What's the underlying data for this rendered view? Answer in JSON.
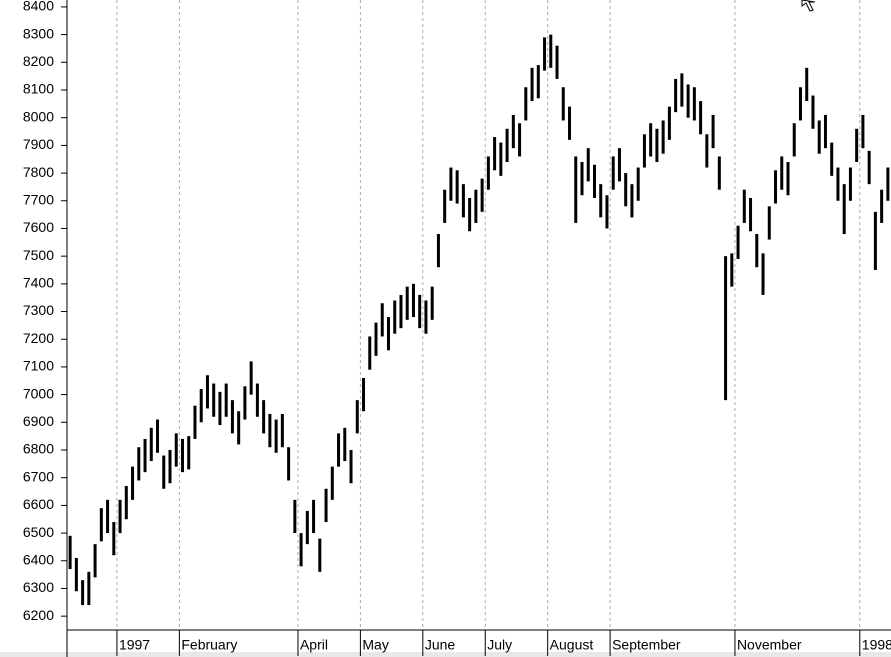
{
  "chart_data": {
    "type": "hilo",
    "color": "#000000",
    "categories": [
      null,
      null,
      null,
      null,
      null,
      null,
      null,
      null,
      "1997",
      null,
      null,
      null,
      null,
      null,
      null,
      null,
      null,
      null,
      "February",
      null,
      null,
      null,
      null,
      null,
      null,
      null,
      null,
      null,
      null,
      null,
      null,
      null,
      null,
      null,
      null,
      null,
      null,
      "April",
      null,
      null,
      null,
      null,
      null,
      null,
      null,
      null,
      null,
      "May",
      null,
      null,
      null,
      null,
      null,
      null,
      null,
      null,
      null,
      "June",
      null,
      null,
      null,
      null,
      null,
      null,
      null,
      null,
      null,
      "July",
      null,
      null,
      null,
      null,
      null,
      null,
      null,
      null,
      null,
      "August",
      null,
      null,
      null,
      null,
      null,
      null,
      null,
      null,
      null,
      "September",
      null,
      null,
      null,
      null,
      null,
      null,
      null,
      null,
      null,
      null,
      null,
      null,
      null,
      null,
      null,
      null,
      null,
      null,
      null,
      "November",
      null,
      null,
      null,
      null,
      null,
      null,
      null,
      null,
      null,
      null,
      null,
      null,
      null,
      null,
      null,
      null,
      null,
      null,
      null,
      "1998",
      null,
      null,
      null,
      null
    ],
    "high": [
      6490,
      6410,
      6330,
      6360,
      6460,
      6590,
      6620,
      6540,
      6620,
      6670,
      6740,
      6810,
      6840,
      6880,
      6910,
      6780,
      6800,
      6860,
      6840,
      6850,
      6960,
      7020,
      7070,
      7040,
      7010,
      7040,
      6980,
      6940,
      7030,
      7120,
      7040,
      6980,
      6930,
      6910,
      6930,
      6810,
      6620,
      6500,
      6580,
      6620,
      6480,
      6660,
      6740,
      6860,
      6880,
      6800,
      6980,
      7060,
      7210,
      7260,
      7330,
      7280,
      7340,
      7360,
      7390,
      7400,
      7360,
      7340,
      7390,
      7580,
      7740,
      7820,
      7810,
      7760,
      7710,
      7740,
      7780,
      7860,
      7930,
      7910,
      7960,
      8010,
      7980,
      8110,
      8180,
      8190,
      8290,
      8300,
      8260,
      8110,
      8040,
      7860,
      7840,
      7890,
      7830,
      7760,
      7720,
      7860,
      7890,
      7800,
      7760,
      7820,
      7940,
      7980,
      7960,
      7990,
      8040,
      8140,
      8160,
      8120,
      8110,
      8060,
      7940,
      8010,
      7860,
      7500,
      7510,
      7610,
      7740,
      7710,
      7580,
      7510,
      7680,
      7810,
      7860,
      7840,
      7980,
      8110,
      8180,
      8080,
      7990,
      8010,
      7910,
      7820,
      7760,
      7820,
      7960,
      8010,
      7880,
      7660,
      7740,
      7820
    ],
    "low": [
      6370,
      6290,
      6240,
      6240,
      6340,
      6470,
      6500,
      6420,
      6500,
      6550,
      6620,
      6690,
      6720,
      6760,
      6790,
      6660,
      6680,
      6740,
      6720,
      6730,
      6840,
      6900,
      6950,
      6920,
      6890,
      6920,
      6860,
      6820,
      6910,
      7000,
      6920,
      6860,
      6810,
      6790,
      6810,
      6690,
      6500,
      6380,
      6460,
      6500,
      6360,
      6540,
      6620,
      6740,
      6760,
      6680,
      6860,
      6940,
      7090,
      7140,
      7210,
      7160,
      7220,
      7240,
      7270,
      7280,
      7240,
      7220,
      7270,
      7460,
      7620,
      7700,
      7690,
      7640,
      7590,
      7620,
      7660,
      7740,
      7810,
      7790,
      7840,
      7890,
      7860,
      7990,
      8060,
      8070,
      8170,
      8180,
      8140,
      7990,
      7920,
      7620,
      7720,
      7770,
      7710,
      7640,
      7600,
      7740,
      7770,
      7680,
      7640,
      7700,
      7820,
      7860,
      7840,
      7870,
      7920,
      8020,
      8040,
      8000,
      7990,
      7940,
      7820,
      7890,
      7740,
      6980,
      7390,
      7490,
      7620,
      7590,
      7460,
      7360,
      7560,
      7690,
      7740,
      7720,
      7860,
      7990,
      8060,
      7960,
      7870,
      7890,
      7790,
      7700,
      7580,
      7700,
      7840,
      7890,
      7760,
      7450,
      7620,
      7700
    ],
    "ylim": [
      6150,
      8425
    ],
    "yticks": [
      6200,
      6300,
      6400,
      6500,
      6600,
      6700,
      6800,
      6900,
      7000,
      7100,
      7200,
      7300,
      7400,
      7500,
      7600,
      7700,
      7800,
      7900,
      8000,
      8100,
      8200,
      8300,
      8400
    ]
  }
}
